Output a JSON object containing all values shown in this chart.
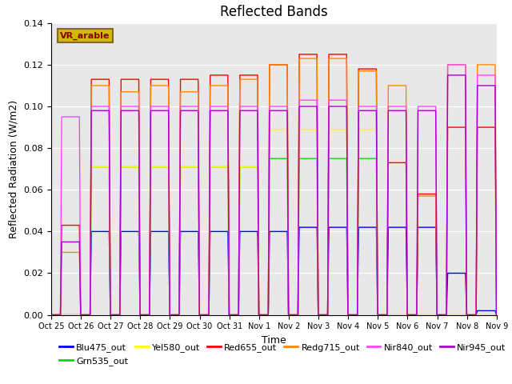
{
  "title": "Reflected Bands",
  "xlabel": "Time",
  "ylabel": "Reflected Radiation (W/m2)",
  "ylim": [
    0,
    0.14
  ],
  "yticks": [
    0,
    0.02,
    0.04,
    0.06,
    0.08,
    0.1,
    0.12,
    0.14
  ],
  "annotation_text": "VR_arable",
  "annotation_color": "#8B0000",
  "annotation_bg": "#ccbb00",
  "annotation_edge": "#8B6914",
  "series": [
    {
      "name": "Blu475_out",
      "color": "#0000ff"
    },
    {
      "name": "Grn535_out",
      "color": "#00dd00"
    },
    {
      "name": "Yel580_out",
      "color": "#ffff00"
    },
    {
      "name": "Red655_out",
      "color": "#ff0000"
    },
    {
      "name": "Redg715_out",
      "color": "#ff8800"
    },
    {
      "name": "Nir840_out",
      "color": "#ff44ff"
    },
    {
      "name": "Nir945_out",
      "color": "#aa00cc"
    }
  ],
  "n_days": 16,
  "ppd": 500,
  "day_on": 0.35,
  "day_off": 0.95,
  "peak_amps": {
    "Blu475_out": [
      0.0,
      0.04,
      0.04,
      0.04,
      0.04,
      0.04,
      0.04,
      0.04,
      0.042,
      0.042,
      0.042,
      0.042,
      0.042,
      0.02,
      0.002,
      0.0
    ],
    "Grn535_out": [
      0.0,
      0.071,
      0.071,
      0.071,
      0.071,
      0.071,
      0.071,
      0.075,
      0.075,
      0.075,
      0.075,
      0.0,
      0.0,
      0.0,
      0.0,
      0.0
    ],
    "Yel580_out": [
      0.0,
      0.071,
      0.071,
      0.071,
      0.071,
      0.071,
      0.071,
      0.089,
      0.089,
      0.089,
      0.089,
      0.0,
      0.0,
      0.0,
      0.0,
      0.0
    ],
    "Red655_out": [
      0.043,
      0.113,
      0.113,
      0.113,
      0.113,
      0.115,
      0.115,
      0.12,
      0.125,
      0.125,
      0.118,
      0.073,
      0.058,
      0.09,
      0.09,
      0.0
    ],
    "Redg715_out": [
      0.03,
      0.11,
      0.107,
      0.11,
      0.107,
      0.11,
      0.113,
      0.12,
      0.123,
      0.123,
      0.117,
      0.11,
      0.057,
      0.12,
      0.12,
      0.0
    ],
    "Nir840_out": [
      0.095,
      0.1,
      0.1,
      0.1,
      0.1,
      0.1,
      0.1,
      0.1,
      0.103,
      0.103,
      0.1,
      0.1,
      0.1,
      0.12,
      0.115,
      0.0
    ],
    "Nir945_out": [
      0.035,
      0.098,
      0.098,
      0.098,
      0.098,
      0.098,
      0.098,
      0.098,
      0.1,
      0.1,
      0.098,
      0.098,
      0.098,
      0.115,
      0.11,
      0.0
    ]
  },
  "xtick_labels": [
    "Oct 25",
    "Oct 26",
    "Oct 27",
    "Oct 28",
    "Oct 29",
    "Oct 30",
    "Oct 31",
    "Nov 1",
    "Nov 2",
    "Nov 3",
    "Nov 4",
    "Nov 5",
    "Nov 6",
    "Nov 7",
    "Nov 8",
    "Nov 9"
  ],
  "background_color": "#e8e8e8",
  "grid_color": "#ffffff"
}
